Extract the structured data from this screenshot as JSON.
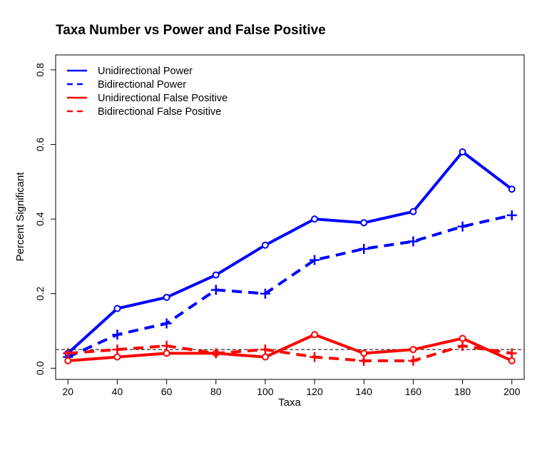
{
  "chart_data": {
    "type": "line",
    "title": "Taxa Number vs Power and False Positive",
    "xlabel": "Taxa",
    "ylabel": "Percent Significant",
    "x": [
      20,
      40,
      60,
      80,
      100,
      120,
      140,
      160,
      180,
      200
    ],
    "xticks": [
      "20",
      "40",
      "60",
      "80",
      "100",
      "120",
      "140",
      "160",
      "180",
      "200"
    ],
    "yticks": [
      "0.0",
      "0.2",
      "0.4",
      "0.6",
      "0.8"
    ],
    "xlim": [
      15,
      205
    ],
    "ylim": [
      -0.03,
      0.84
    ],
    "reference_line": 0.05,
    "legend_position": "top-left",
    "grid": false,
    "series": [
      {
        "name": "Unidirectional Power",
        "color": "#0000ff",
        "dash": "solid",
        "marker": "circle",
        "values": [
          0.04,
          0.16,
          0.19,
          0.25,
          0.33,
          0.4,
          0.39,
          0.42,
          0.58,
          0.48
        ]
      },
      {
        "name": "Bidirectional Power",
        "color": "#0000ff",
        "dash": "dashed",
        "marker": "plus",
        "values": [
          0.03,
          0.09,
          0.12,
          0.21,
          0.2,
          0.29,
          0.32,
          0.34,
          0.38,
          0.41
        ]
      },
      {
        "name": "Unidirectional False Positive",
        "color": "#ff0000",
        "dash": "solid",
        "marker": "circle",
        "values": [
          0.02,
          0.03,
          0.04,
          0.04,
          0.03,
          0.09,
          0.04,
          0.05,
          0.08,
          0.02
        ]
      },
      {
        "name": "Bidirectional False Positive",
        "color": "#ff0000",
        "dash": "dashed",
        "marker": "plus",
        "values": [
          0.04,
          0.05,
          0.06,
          0.04,
          0.05,
          0.03,
          0.02,
          0.02,
          0.06,
          0.04
        ]
      }
    ]
  }
}
